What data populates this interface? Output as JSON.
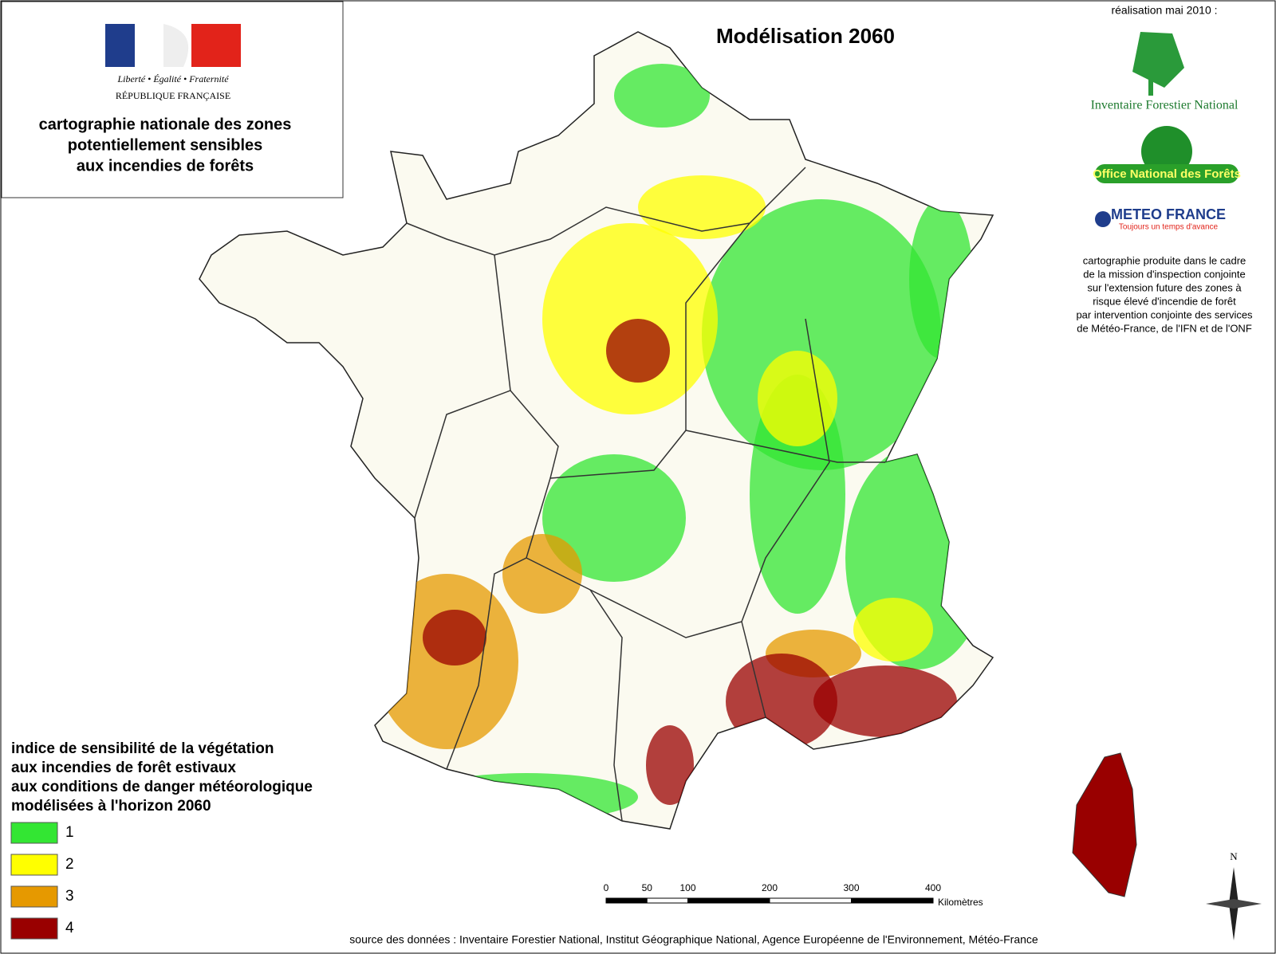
{
  "header": {
    "motto": [
      "Liberté",
      "Égalité",
      "Fraternité"
    ],
    "republic": "RÉPUBLIQUE FRANÇAISE",
    "title_lines": [
      "cartographie nationale des zones",
      "potentiellement sensibles",
      "aux incendies de forêts"
    ]
  },
  "map_title": "Modélisation 2060",
  "credits": {
    "date": "réalisation mai 2010 :",
    "logos": [
      "Inventaire Forestier National",
      "Office National des Forêts",
      "METEO FRANCE",
      "Toujours un temps d'avance"
    ],
    "note_lines": [
      "cartographie produite dans le cadre",
      "de la mission d'inspection conjointe",
      "sur l'extension future des zones à",
      "risque élevé d'incendie de forêt",
      "par intervention conjointe des services",
      "de Météo-France, de l'IFN et de l'ONF"
    ]
  },
  "legend": {
    "title_lines": [
      "indice de sensibilité de la végétation",
      "aux incendies de forêt estivaux",
      "aux conditions de danger météorologique",
      "modélisées à l'horizon 2060"
    ],
    "classes": [
      {
        "label": "1",
        "color": "#33e633"
      },
      {
        "label": "2",
        "color": "#ffff00"
      },
      {
        "label": "3",
        "color": "#e69900"
      },
      {
        "label": "4",
        "color": "#990000"
      }
    ]
  },
  "scale": {
    "ticks": [
      0,
      50,
      100,
      200,
      300,
      400
    ],
    "unit": "Kilomètres"
  },
  "north": "N",
  "source": "source des données : Inventaire Forestier National, Institut Géographique National,  Agence Européenne de l'Environnement, Météo-France"
}
